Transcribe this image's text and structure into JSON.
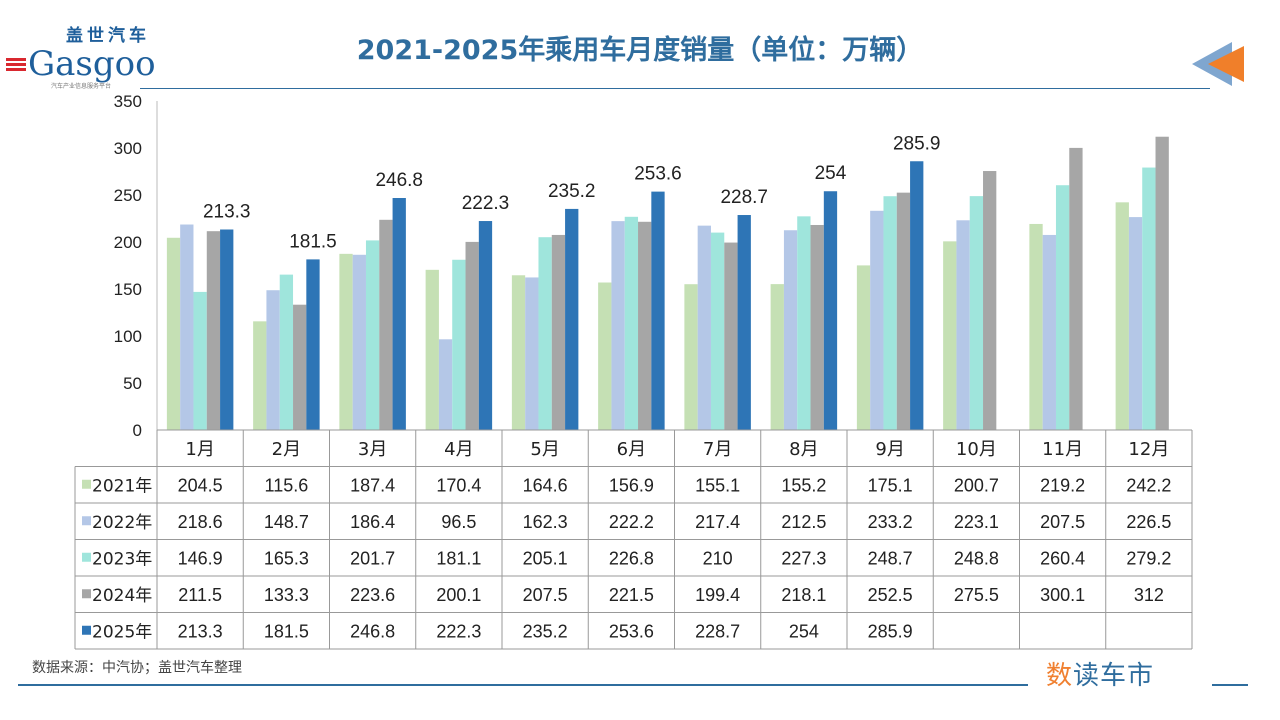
{
  "header": {
    "title": "2021-2025年乘用车月度销量（单位：万辆）",
    "logo_cn": "盖世汽车",
    "logo_en": "Gasgoo",
    "logo_sub": "汽车产业信息服务平台"
  },
  "footer": {
    "source": "数据来源：中汽协；盖世汽车整理",
    "brand": "数读车市"
  },
  "chart_data": {
    "type": "bar",
    "title": "2021-2025年乘用车月度销量（单位：万辆）",
    "xlabel": "",
    "ylabel": "万辆",
    "ylim": [
      0,
      350
    ],
    "yticks": [
      0,
      50,
      100,
      150,
      200,
      250,
      300,
      350
    ],
    "categories": [
      "1月",
      "2月",
      "3月",
      "4月",
      "5月",
      "6月",
      "7月",
      "8月",
      "9月",
      "10月",
      "11月",
      "12月"
    ],
    "legend": "bottom-table",
    "series": [
      {
        "name": "2021年",
        "color": "#c5e0b4",
        "values": [
          204.5,
          115.6,
          187.4,
          170.4,
          164.6,
          156.9,
          155.1,
          155.2,
          175.1,
          200.7,
          219.2,
          242.2
        ]
      },
      {
        "name": "2022年",
        "color": "#b4c7e7",
        "values": [
          218.6,
          148.7,
          186.4,
          96.5,
          162.3,
          222.2,
          217.4,
          212.5,
          233.2,
          223.1,
          207.5,
          226.5
        ]
      },
      {
        "name": "2023年",
        "color": "#9fe5dc",
        "values": [
          146.9,
          165.3,
          201.7,
          181.1,
          205.1,
          226.8,
          210,
          227.3,
          248.7,
          248.8,
          260.4,
          279.2
        ]
      },
      {
        "name": "2024年",
        "color": "#a6a6a6",
        "values": [
          211.5,
          133.3,
          223.6,
          200.1,
          207.5,
          221.5,
          199.4,
          218.1,
          252.5,
          275.5,
          300.1,
          312
        ]
      },
      {
        "name": "2025年",
        "color": "#2e75b6",
        "values": [
          213.3,
          181.5,
          246.8,
          222.3,
          235.2,
          253.6,
          228.7,
          254,
          285.9,
          null,
          null,
          null
        ]
      }
    ]
  }
}
